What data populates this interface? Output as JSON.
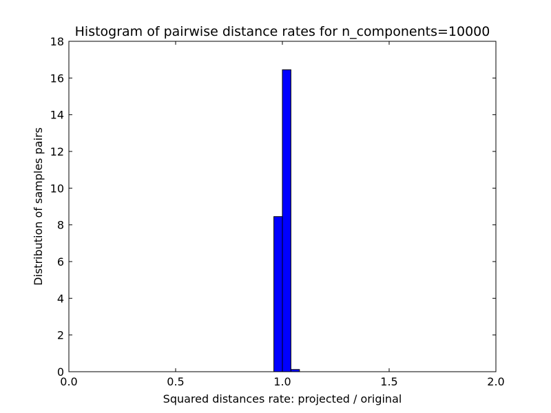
{
  "chart_data": {
    "type": "bar",
    "title": "Histogram of pairwise distance rates for n_components=10000",
    "xlabel": "Squared distances rate: projected / original",
    "ylabel": "Distribution of samples pairs",
    "xlim": [
      0.0,
      2.0
    ],
    "ylim": [
      0,
      18
    ],
    "xticks": [
      0.0,
      0.5,
      1.0,
      1.5,
      2.0
    ],
    "xtick_labels": [
      "0.0",
      "0.5",
      "1.0",
      "1.5",
      "2.0"
    ],
    "yticks": [
      0,
      2,
      4,
      6,
      8,
      10,
      12,
      14,
      16,
      18
    ],
    "ytick_labels": [
      "0",
      "2",
      "4",
      "6",
      "8",
      "10",
      "12",
      "14",
      "16",
      "18"
    ],
    "grid": false,
    "bar_color": "#0000ff",
    "bins": [
      {
        "x0": 0.96,
        "x1": 1.0,
        "value": 8.45
      },
      {
        "x0": 1.0,
        "x1": 1.04,
        "value": 16.45
      },
      {
        "x0": 1.04,
        "x1": 1.08,
        "value": 0.12
      }
    ]
  }
}
